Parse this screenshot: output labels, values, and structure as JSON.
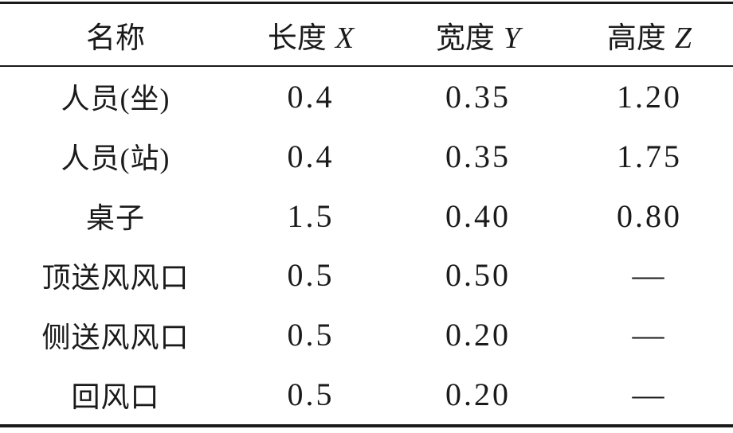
{
  "table": {
    "columns": [
      {
        "label": "名称",
        "symbol": ""
      },
      {
        "label": "长度",
        "symbol": "X"
      },
      {
        "label": "宽度",
        "symbol": "Y"
      },
      {
        "label": "高度",
        "symbol": "Z"
      }
    ],
    "rows": [
      {
        "name": "人员(坐)",
        "x": "0.4",
        "y": "0.35",
        "z": "1.20"
      },
      {
        "name": "人员(站)",
        "x": "0.4",
        "y": "0.35",
        "z": "1.75"
      },
      {
        "name": "桌子",
        "x": "1.5",
        "y": "0.40",
        "z": "0.80"
      },
      {
        "name": "顶送风风口",
        "x": "0.5",
        "y": "0.50",
        "z": "—"
      },
      {
        "name": "侧送风风口",
        "x": "0.5",
        "y": "0.20",
        "z": "—"
      },
      {
        "name": "回风口",
        "x": "0.5",
        "y": "0.20",
        "z": "—"
      }
    ],
    "colors": {
      "text": "#1a1a1a",
      "rule": "#1a1a1a",
      "background": "#ffffff"
    }
  },
  "chart_data": {
    "type": "table",
    "columns": [
      "名称",
      "长度 X",
      "宽度 Y",
      "高度 Z"
    ],
    "rows": [
      [
        "人员(坐)",
        "0.4",
        "0.35",
        "1.20"
      ],
      [
        "人员(站)",
        "0.4",
        "0.35",
        "1.75"
      ],
      [
        "桌子",
        "1.5",
        "0.40",
        "0.80"
      ],
      [
        "顶送风风口",
        "0.5",
        "0.50",
        "—"
      ],
      [
        "侧送风风口",
        "0.5",
        "0.20",
        "—"
      ],
      [
        "回风口",
        "0.5",
        "0.20",
        "—"
      ]
    ],
    "layout": {
      "style": "three-line-table",
      "rules": [
        "thick-top",
        "thin-below-header",
        "thick-bottom"
      ],
      "column_alignment": [
        "center",
        "center",
        "center",
        "center"
      ]
    }
  }
}
